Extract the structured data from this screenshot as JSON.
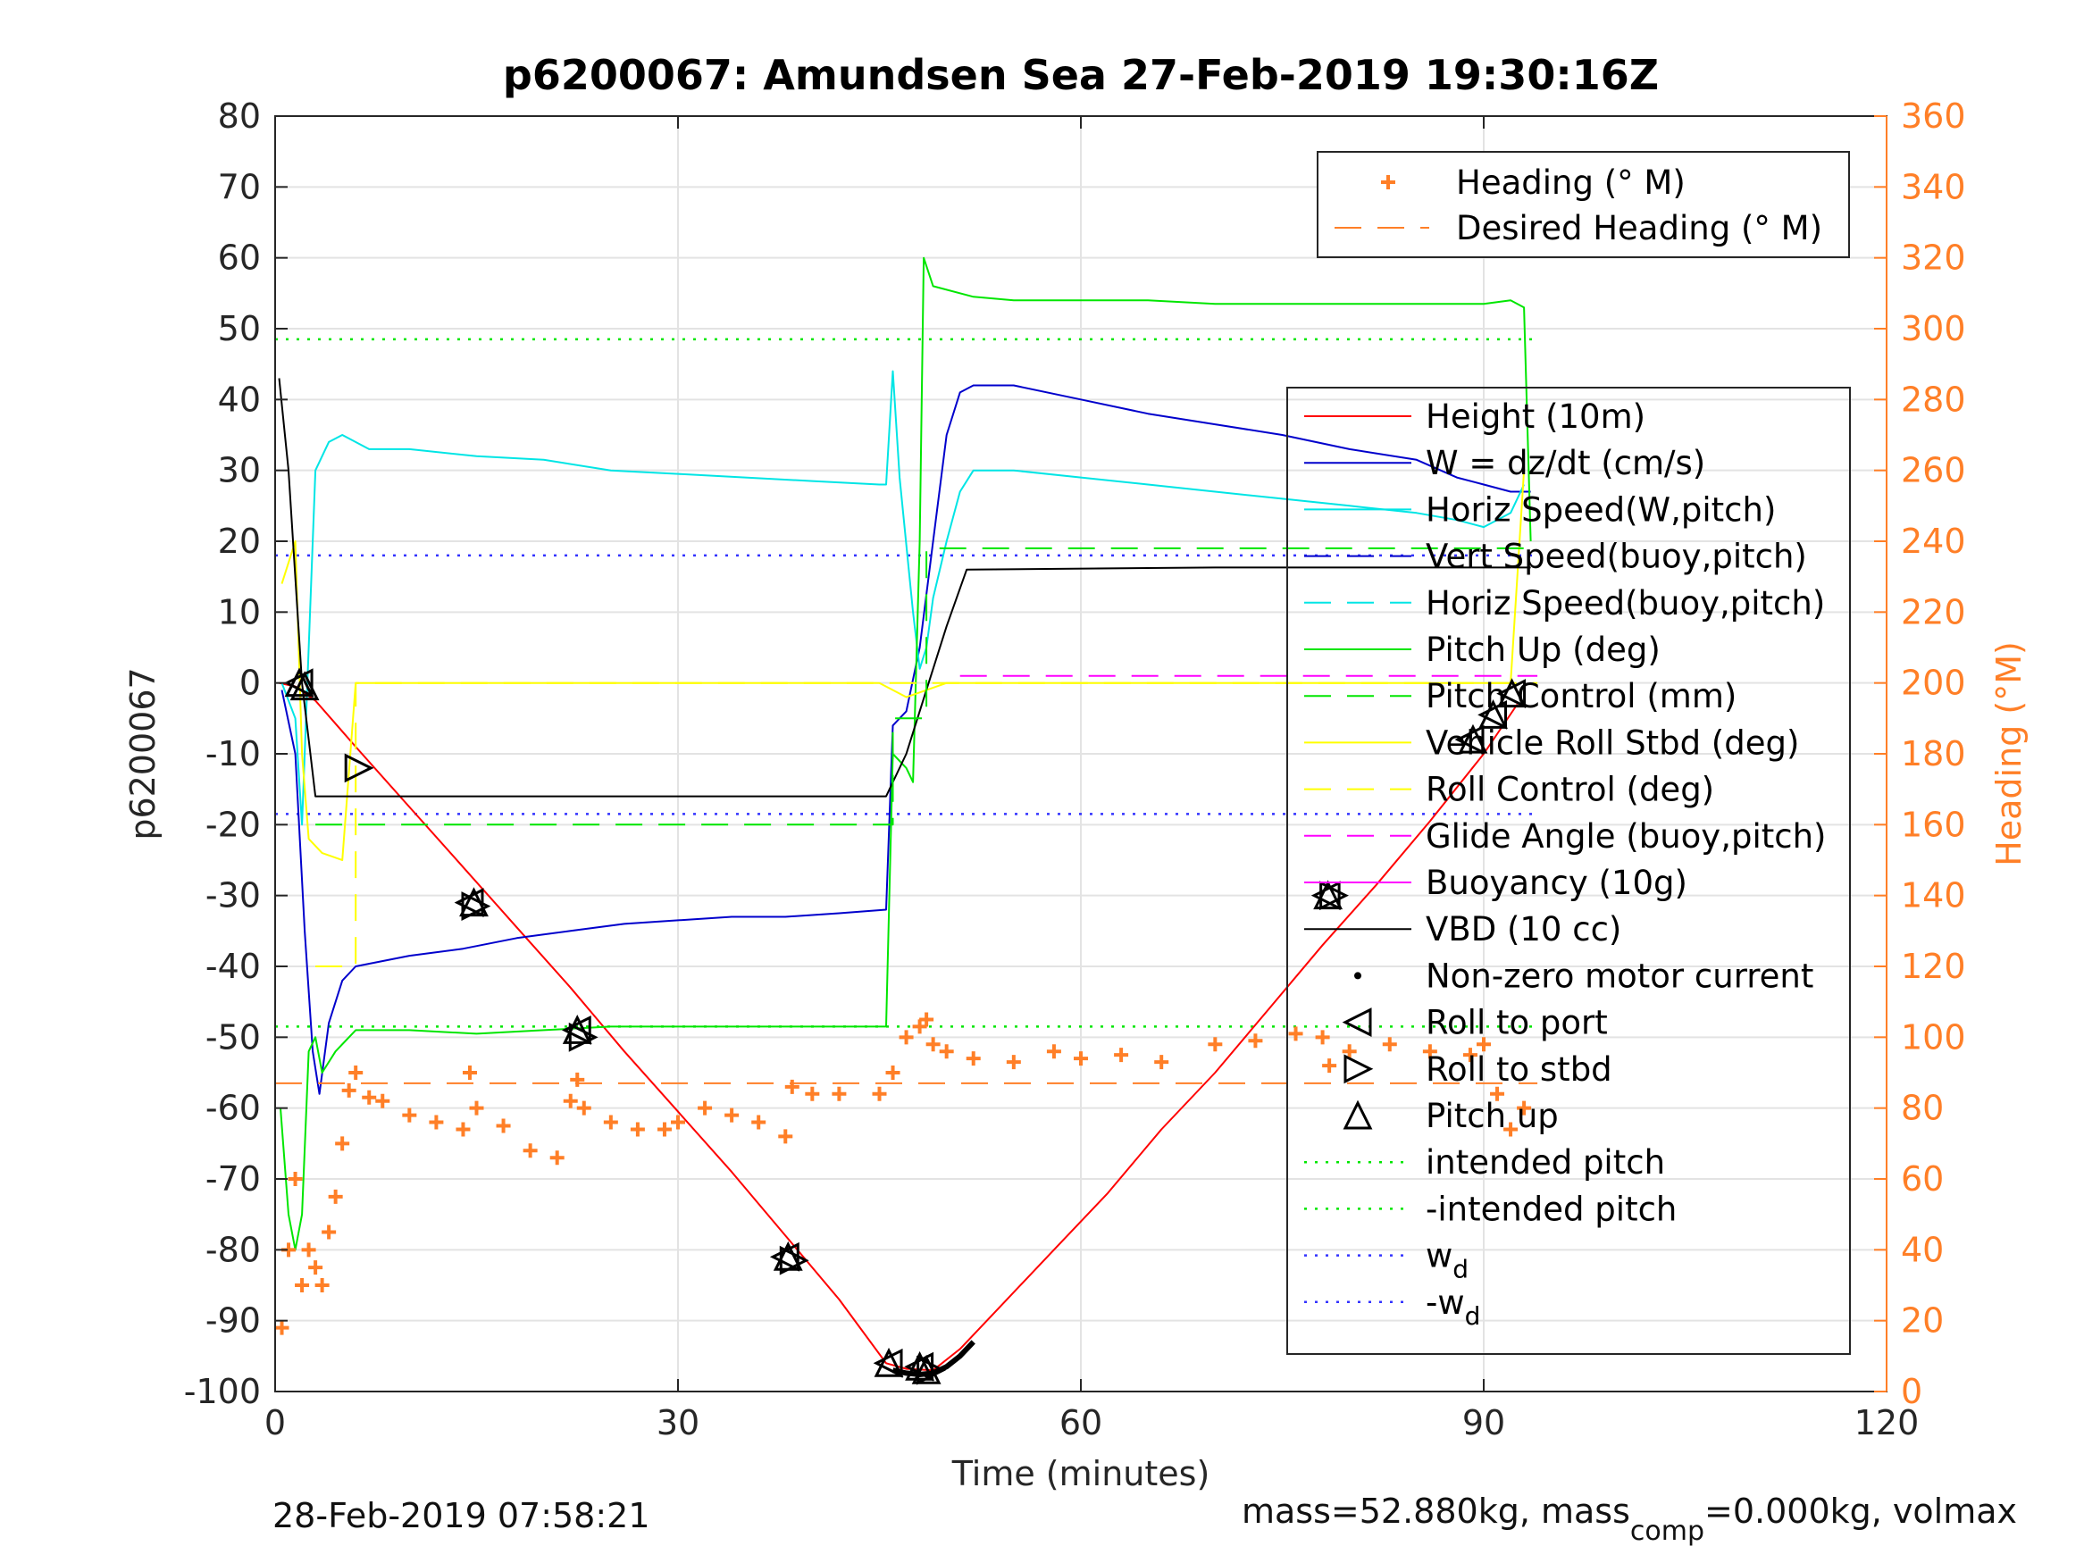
{
  "figure": {
    "title": "p6200067: Amundsen Sea 27-Feb-2019 19:30:16Z",
    "footer_left": "28-Feb-2019 07:58:21",
    "footer_right_a": "mass=52.880kg, mass",
    "footer_right_sub": "comp",
    "footer_right_b": "=0.000kg, volmax"
  },
  "chart_data": {
    "type": "line",
    "title": "p6200067: Amundsen Sea 27-Feb-2019 19:30:16Z",
    "xlabel": "Time (minutes)",
    "ylabel": "p6200067",
    "y2label": "Heading (°M)",
    "xlim": [
      0,
      120
    ],
    "ylim": [
      -100,
      80
    ],
    "y2lim": [
      0,
      360
    ],
    "xticks": [
      0,
      30,
      60,
      90,
      120
    ],
    "yticks": [
      -100,
      -90,
      -80,
      -70,
      -60,
      -50,
      -40,
      -30,
      -20,
      -10,
      0,
      10,
      20,
      30,
      40,
      50,
      60,
      70,
      80
    ],
    "y2ticks": [
      0,
      20,
      40,
      60,
      80,
      100,
      120,
      140,
      160,
      180,
      200,
      220,
      240,
      260,
      280,
      300,
      320,
      340,
      360
    ],
    "grid": true,
    "colors": {
      "height": "#ff0000",
      "w": "#0000cc",
      "horiz_w": "#00e5e5",
      "pitch": "#00e600",
      "roll": "#ffff00",
      "glide": "#ff00ff",
      "vbd": "#000000",
      "heading": "#ff7f27",
      "wd": "#3333ff"
    },
    "legend_heading": {
      "placement": "top-right",
      "entries": [
        {
          "label": "Heading (° M)",
          "color": "#ff7f27",
          "style": "plus"
        },
        {
          "label": "Desired Heading (° M)",
          "color": "#ff7f27",
          "style": "dash"
        }
      ]
    },
    "legend_main": {
      "placement": "right",
      "entries": [
        {
          "label": "Height (10m)",
          "color": "#ff0000",
          "style": "solid"
        },
        {
          "label": "W = dz/dt (cm/s)",
          "color": "#0000cc",
          "style": "solid"
        },
        {
          "label": "Horiz Speed(W,pitch)",
          "color": "#00e5e5",
          "style": "solid"
        },
        {
          "label": "Vert Speed(buoy,pitch)",
          "color": "#0000cc",
          "style": "dash"
        },
        {
          "label": "Horiz Speed(buoy,pitch)",
          "color": "#00e5e5",
          "style": "dash"
        },
        {
          "label": "Pitch Up (deg)",
          "color": "#00e600",
          "style": "solid"
        },
        {
          "label": "Pitch Control (mm)",
          "color": "#00e600",
          "style": "dash"
        },
        {
          "label": "Vehicle Roll Stbd (deg)",
          "color": "#ffff00",
          "style": "solid"
        },
        {
          "label": "Roll Control (deg)",
          "color": "#ffff00",
          "style": "dash"
        },
        {
          "label": "Glide Angle (buoy,pitch)",
          "color": "#ff00ff",
          "style": "dash"
        },
        {
          "label": "Buoyancy (10g)",
          "color": "#ff00ff",
          "style": "solid"
        },
        {
          "label": "VBD (10 cc)",
          "color": "#000000",
          "style": "solid"
        },
        {
          "label": "Non-zero motor current",
          "color": "#000000",
          "style": "dot"
        },
        {
          "label": "Roll to port",
          "color": "#000000",
          "style": "tri-left"
        },
        {
          "label": "Roll to stbd",
          "color": "#000000",
          "style": "tri-right"
        },
        {
          "label": "Pitch up",
          "color": "#000000",
          "style": "tri-up"
        },
        {
          "label": "intended pitch",
          "color": "#00e600",
          "style": "dot"
        },
        {
          "label": "-intended pitch",
          "color": "#00e600",
          "style": "dot"
        },
        {
          "label": "w",
          "sub": "d",
          "color": "#3333ff",
          "style": "dot"
        },
        {
          "label": "-w",
          "sub": "d",
          "color": "#3333ff",
          "style": "dot"
        }
      ]
    },
    "series": [
      {
        "name": "Height (10m)",
        "key": "height",
        "axis": "left",
        "x": [
          0.3,
          1.5,
          3,
          6,
          10,
          14,
          18,
          22,
          26,
          30,
          34,
          38,
          42,
          45.5,
          47,
          49,
          51,
          54,
          58,
          62,
          66,
          70,
          74,
          78,
          82,
          86,
          90,
          92.5
        ],
        "y": [
          0,
          -0.5,
          -2.5,
          -9,
          -17.5,
          -26,
          -34.5,
          -43,
          -52,
          -60.5,
          -69,
          -78,
          -87,
          -96,
          -96.8,
          -97,
          -94,
          -88,
          -80,
          -72,
          -63,
          -55,
          -46,
          -37,
          -28.5,
          -19.5,
          -10,
          -3
        ]
      },
      {
        "name": "W = dz/dt (cm/s)",
        "key": "w",
        "axis": "left",
        "x": [
          0.5,
          1.5,
          2.2,
          2.8,
          3.3,
          4,
          5,
          6,
          10,
          14,
          18,
          22,
          26,
          30,
          34,
          38,
          42,
          45.5,
          46,
          47,
          48,
          49,
          50,
          51,
          52,
          55,
          60,
          65,
          70,
          75,
          80,
          85,
          88,
          90,
          92,
          93.5
        ],
        "y": [
          -1,
          -10,
          -35,
          -52,
          -58,
          -48,
          -42,
          -40,
          -38.5,
          -37.5,
          -36,
          -35,
          -34,
          -33.5,
          -33,
          -33,
          -32.5,
          -32,
          -6,
          -4,
          5,
          20,
          35,
          41,
          42,
          42,
          40,
          38,
          36.5,
          35,
          33,
          31.5,
          29,
          28,
          27,
          27
        ]
      },
      {
        "name": "Horiz Speed(W,pitch)",
        "key": "horiz_w",
        "axis": "left",
        "x": [
          0.5,
          1.5,
          2,
          2.5,
          3,
          4,
          5,
          7,
          10,
          15,
          20,
          25,
          30,
          35,
          40,
          45,
          45.5,
          46,
          46.5,
          47.5,
          48,
          48.5,
          49,
          50,
          51,
          52,
          55,
          60,
          65,
          70,
          75,
          80,
          85,
          88,
          90,
          92,
          93
        ],
        "y": [
          0,
          -5,
          -20,
          5,
          30,
          34,
          35,
          33,
          33,
          32,
          31.5,
          30,
          29.5,
          29,
          28.5,
          28,
          28,
          44,
          29,
          10,
          2,
          5,
          12,
          20,
          27,
          30,
          30,
          29,
          28,
          27,
          26,
          25,
          24,
          23,
          22,
          24,
          28
        ]
      },
      {
        "name": "Pitch Up (deg)",
        "key": "pitch",
        "axis": "left",
        "x": [
          0.4,
          1,
          1.5,
          2,
          2.5,
          3,
          3.5,
          4.5,
          6,
          10,
          15,
          20,
          25,
          30,
          35,
          40,
          45.5,
          46,
          47,
          47.5,
          48,
          48.3,
          49,
          52,
          55,
          60,
          65,
          70,
          75,
          80,
          85,
          90,
          92,
          93,
          93.5
        ],
        "y": [
          -60,
          -75,
          -80,
          -75,
          -52,
          -50,
          -55,
          -52,
          -49,
          -49,
          -49.5,
          -49,
          -48.5,
          -48.5,
          -48.5,
          -48.5,
          -48.5,
          -10,
          -12,
          -14,
          20,
          60,
          56,
          54.5,
          54,
          54,
          54,
          53.5,
          53.5,
          53.5,
          53.5,
          53.5,
          54,
          53,
          20
        ]
      },
      {
        "name": "Vehicle Roll Stbd (deg)",
        "key": "roll",
        "axis": "left",
        "x": [
          0.5,
          1.5,
          2,
          2.5,
          3.5,
          5,
          6,
          7,
          10,
          14,
          16,
          20,
          22,
          25,
          30,
          35,
          38,
          40,
          45,
          47,
          50,
          55,
          60,
          65,
          70,
          75,
          78,
          80,
          85,
          88,
          90,
          91,
          92,
          93
        ],
        "y": [
          14,
          20,
          -10,
          -22,
          -24,
          -25,
          0,
          0,
          0,
          0,
          0,
          0,
          0,
          0,
          0,
          0,
          0,
          0,
          0,
          -2,
          0,
          0,
          0,
          0,
          0,
          0,
          0,
          0,
          0,
          0,
          0,
          0,
          0,
          30
        ]
      },
      {
        "name": "VBD (10 cc)",
        "key": "vbd",
        "axis": "left",
        "x": [
          0.3,
          1,
          2,
          3,
          45.5,
          47,
          48.5,
          50,
          51.5,
          70,
          93.5
        ],
        "y": [
          43,
          30,
          0,
          -16,
          -16,
          -10,
          -1,
          8,
          16,
          16.3,
          16.3
        ]
      },
      {
        "name": "Pitch Control (mm)",
        "key": "pitch_ctrl",
        "axis": "left",
        "x": [
          3,
          46,
          46,
          48.5,
          48.5,
          94
        ],
        "y": [
          -20,
          -20,
          -5,
          -5,
          19,
          19
        ]
      },
      {
        "name": "Roll Control (deg)",
        "key": "roll_ctrl",
        "axis": "left",
        "x": [
          3,
          6,
          6,
          94
        ],
        "y": [
          -40,
          -40,
          0,
          0
        ]
      },
      {
        "name": "Glide Angle (buoy,pitch)",
        "key": "glide",
        "axis": "left",
        "x": [
          51,
          94
        ],
        "y": [
          1,
          1
        ]
      },
      {
        "name": "Heading (° M)",
        "key": "heading",
        "axis": "right",
        "x": [
          0.5,
          1,
          1.5,
          2,
          2.5,
          3,
          3.5,
          4,
          4.5,
          5,
          5.5,
          6,
          7,
          8,
          10,
          12,
          14,
          14.5,
          15,
          17,
          19,
          21,
          22,
          22.5,
          23,
          25,
          27,
          29,
          30,
          32,
          34,
          36,
          38,
          38.5,
          40,
          42,
          45,
          46,
          47,
          48,
          48.5,
          49,
          50,
          52,
          55,
          58,
          60,
          63,
          66,
          70,
          73,
          76,
          78,
          78.5,
          80,
          83,
          86,
          89,
          90,
          91,
          92,
          93
        ],
        "y": [
          18,
          40,
          60,
          30,
          40,
          35,
          30,
          45,
          55,
          70,
          85,
          90,
          83,
          82,
          78,
          76,
          74,
          90,
          80,
          75,
          68,
          66,
          82,
          88,
          80,
          76,
          74,
          74,
          76,
          80,
          78,
          76,
          72,
          86,
          84,
          84,
          84,
          90,
          100,
          103,
          105,
          98,
          96,
          94,
          93,
          96,
          94,
          95,
          93,
          98,
          99,
          101,
          100,
          92,
          96,
          98,
          96,
          95,
          98,
          84,
          74,
          80
        ]
      },
      {
        "name": "Desired Heading (° M)",
        "key": "desired_heading",
        "axis": "right",
        "x": [
          0,
          94
        ],
        "y": [
          87,
          87
        ]
      }
    ],
    "reference_lines": [
      {
        "name": "intended pitch",
        "y": 48.5,
        "color": "#00e600"
      },
      {
        "name": "-intended pitch",
        "y": -48.5,
        "color": "#00e600"
      },
      {
        "name": "w_d",
        "y": 18,
        "color": "#3333ff"
      },
      {
        "name": "-w_d",
        "y": -18.5,
        "color": "#3333ff"
      }
    ],
    "markers": {
      "pitch_up": [
        [
          1.8,
          0
        ],
        [
          2.2,
          -0.5
        ],
        [
          14.8,
          -31
        ],
        [
          22.5,
          -49
        ],
        [
          38.2,
          -81
        ],
        [
          45.7,
          -96
        ],
        [
          48,
          -96.5
        ],
        [
          48.5,
          -97
        ],
        [
          78.4,
          -30
        ],
        [
          89.2,
          -8
        ],
        [
          90.7,
          -4.5
        ],
        [
          92.1,
          -1.5
        ]
      ],
      "roll_to_port": [
        [
          1.8,
          0
        ],
        [
          14.5,
          -31
        ],
        [
          22.5,
          -49
        ],
        [
          38,
          -81
        ],
        [
          45.7,
          -96
        ],
        [
          48,
          -96.5
        ],
        [
          78.3,
          -30
        ],
        [
          89,
          -8
        ],
        [
          90.7,
          -4.5
        ],
        [
          92.1,
          -1.5
        ]
      ],
      "roll_to_stbd": [
        [
          6.2,
          -12
        ],
        [
          14.9,
          -31.5
        ],
        [
          22.9,
          -50
        ],
        [
          38.6,
          -81.5
        ],
        [
          48.8,
          -97
        ],
        [
          78.8,
          -30
        ]
      ],
      "motor_current_segment": {
        "x": [
          46,
          47,
          48,
          49,
          50,
          51,
          52
        ],
        "y": [
          -97,
          -97.4,
          -97.6,
          -97.4,
          -96.5,
          -95,
          -93
        ]
      }
    }
  }
}
